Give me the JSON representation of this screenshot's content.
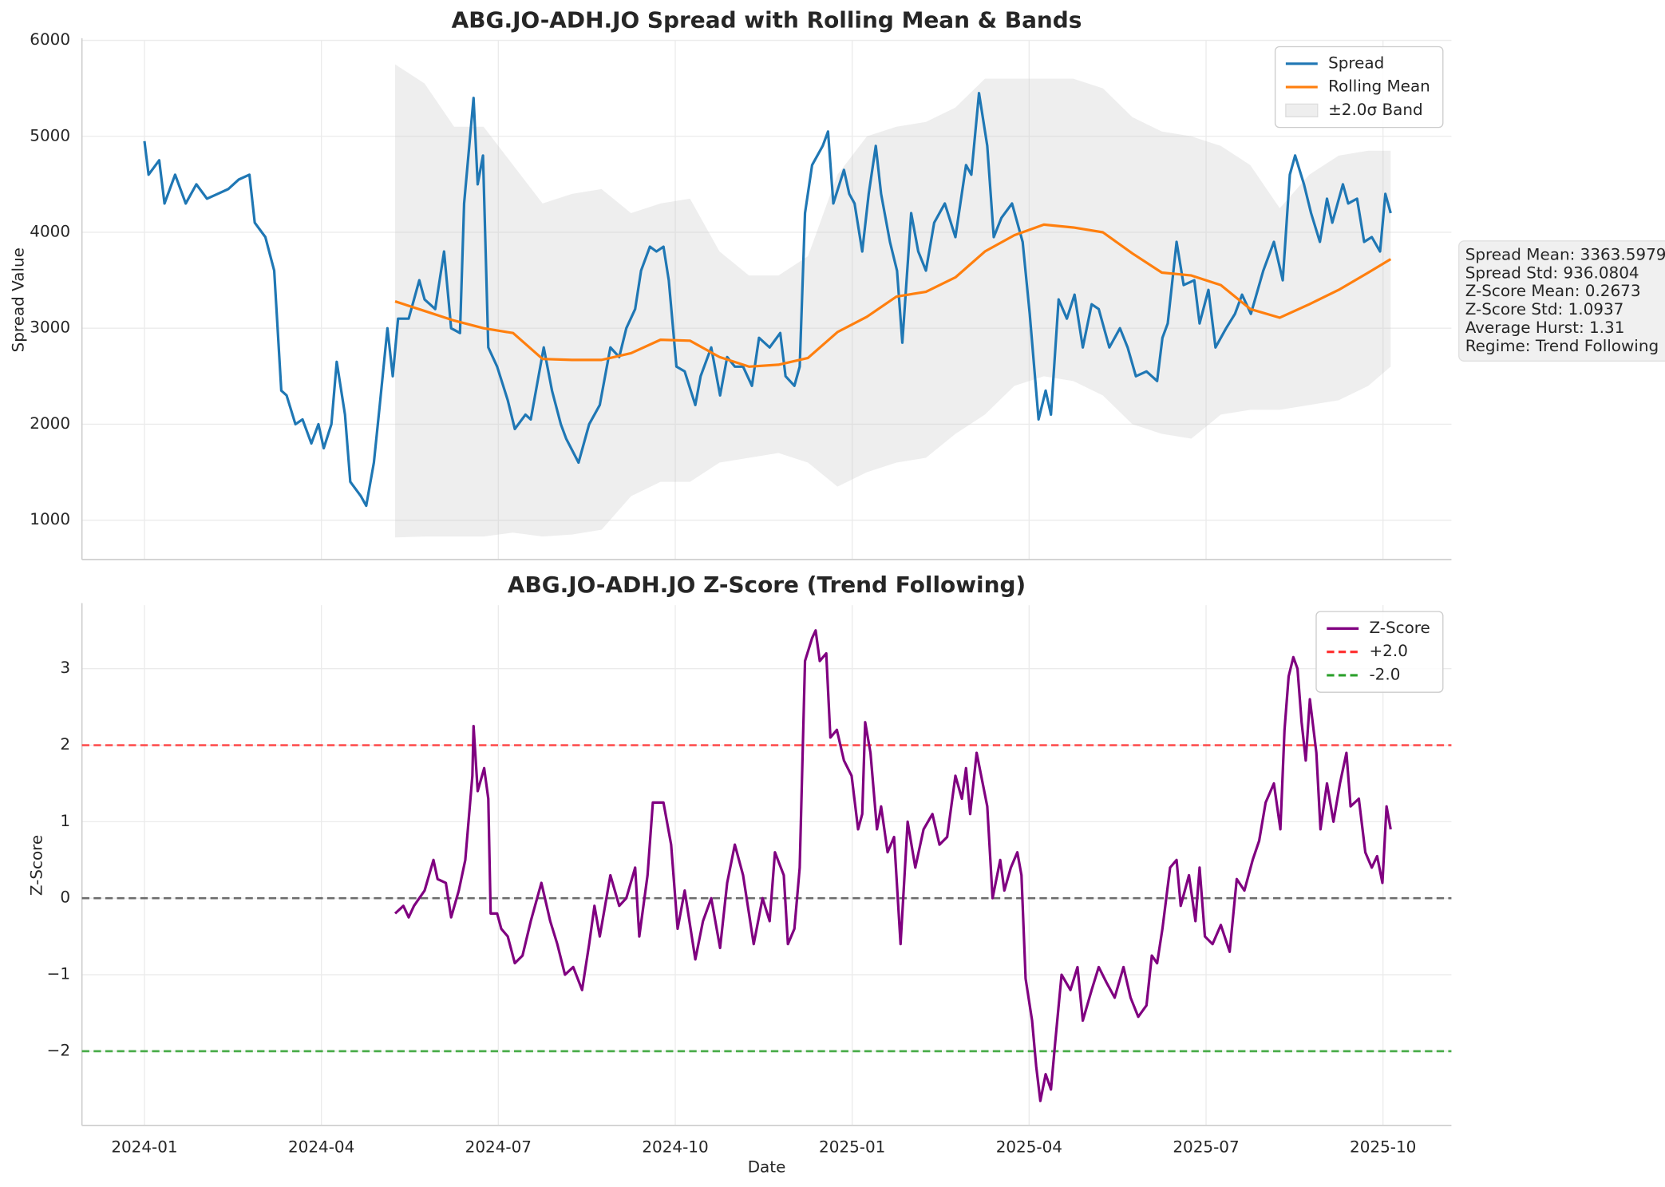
{
  "chart_data": [
    {
      "type": "line",
      "title": "ABG.JO-ADH.JO Spread with Rolling Mean & Bands",
      "ylabel": "Spread Value",
      "xlim": [
        -1.06,
        22.16
      ],
      "ylim": [
        590,
        6000
      ],
      "yticks": [
        1000,
        2000,
        3000,
        4000,
        5000,
        6000
      ],
      "grid": true,
      "legend": "upper right",
      "annotation": [
        "Spread Mean: 3363.5979",
        "Spread Std: 936.0804",
        "Z-Score Mean: 0.2673",
        "Z-Score Std: 1.0937",
        "Average Hurst: 1.31",
        "Regime: Trend Following"
      ],
      "series": [
        {
          "name": "Spread",
          "color": "#1f77b4",
          "x": [
            0,
            0.07,
            0.25,
            0.34,
            0.52,
            0.7,
            0.88,
            1.06,
            1.24,
            1.42,
            1.6,
            1.78,
            1.87,
            2.05,
            2.2,
            2.32,
            2.41,
            2.56,
            2.68,
            2.83,
            2.95,
            3.04,
            3.17,
            3.26,
            3.4,
            3.49,
            3.67,
            3.76,
            3.89,
            3.99,
            4.12,
            4.21,
            4.3,
            4.48,
            4.66,
            4.75,
            4.93,
            5.08,
            5.2,
            5.35,
            5.42,
            5.58,
            5.65,
            5.74,
            5.83,
            5.98,
            6.16,
            6.28,
            6.46,
            6.55,
            6.77,
            6.91,
            7.06,
            7.15,
            7.36,
            7.54,
            7.72,
            7.9,
            8.05,
            8.17,
            8.32,
            8.42,
            8.57,
            8.68,
            8.8,
            8.89,
            9.02,
            9.16,
            9.34,
            9.43,
            9.61,
            9.76,
            9.88,
            10.01,
            10.15,
            10.3,
            10.42,
            10.6,
            10.78,
            10.87,
            11.02,
            11.11,
            11.2,
            11.32,
            11.5,
            11.59,
            11.68,
            11.86,
            11.95,
            12.04,
            12.17,
            12.28,
            12.4,
            12.49,
            12.64,
            12.76,
            12.85,
            13.0,
            13.12,
            13.25,
            13.39,
            13.57,
            13.75,
            13.93,
            14.02,
            14.15,
            14.29,
            14.4,
            14.53,
            14.71,
            14.89,
            15.01,
            15.16,
            15.28,
            15.37,
            15.5,
            15.64,
            15.77,
            15.91,
            16.06,
            16.18,
            16.36,
            16.54,
            16.67,
            16.81,
            16.99,
            17.17,
            17.26,
            17.35,
            17.5,
            17.62,
            17.8,
            17.89,
            18.04,
            18.16,
            18.34,
            18.49,
            18.61,
            18.76,
            18.97,
            19.15,
            19.3,
            19.42,
            19.51,
            19.66,
            19.78,
            19.93,
            20.05,
            20.14,
            20.32,
            20.41,
            20.56,
            20.68,
            20.81,
            20.95,
            21.04,
            21.13
          ],
          "values": [
            4950,
            4600,
            4750,
            4300,
            4600,
            4300,
            4500,
            4350,
            4400,
            4450,
            4550,
            4600,
            4100,
            3950,
            3600,
            2350,
            2300,
            2000,
            2050,
            1800,
            2000,
            1750,
            2000,
            2650,
            2100,
            1400,
            1250,
            1150,
            1600,
            2200,
            3000,
            2500,
            3100,
            3100,
            3500,
            3300,
            3200,
            3800,
            3000,
            2950,
            4300,
            5400,
            4500,
            4800,
            2800,
            2600,
            2250,
            1950,
            2100,
            2050,
            2800,
            2350,
            2000,
            1850,
            1600,
            2000,
            2200,
            2800,
            2700,
            3000,
            3200,
            3600,
            3850,
            3800,
            3850,
            3500,
            2600,
            2550,
            2200,
            2500,
            2800,
            2300,
            2700,
            2600,
            2600,
            2400,
            2900,
            2800,
            2950,
            2500,
            2400,
            2600,
            4200,
            4700,
            4900,
            5050,
            4300,
            4650,
            4400,
            4300,
            3800,
            4400,
            4900,
            4400,
            3900,
            3600,
            2850,
            4200,
            3800,
            3600,
            4100,
            4300,
            3950,
            4700,
            4600,
            5450,
            4900,
            3950,
            4150,
            4300,
            3900,
            3150,
            2050,
            2350,
            2100,
            3300,
            3100,
            3350,
            2800,
            3250,
            3200,
            2800,
            3000,
            2800,
            2500,
            2550,
            2450,
            2900,
            3050,
            3900,
            3450,
            3500,
            3050,
            3400,
            2800,
            3000,
            3150,
            3350,
            3150,
            3600,
            3900,
            3500,
            4600,
            4800,
            4500,
            4200,
            3900,
            4350,
            4100,
            4500,
            4300,
            4350,
            3900,
            3950,
            3800,
            4400,
            4200
          ]
        },
        {
          "name": "Rolling Mean",
          "color": "#ff7f0e",
          "x": [
            4.25,
            4.75,
            5.25,
            5.75,
            6.25,
            6.75,
            7.25,
            7.75,
            8.25,
            8.75,
            9.25,
            9.75,
            10.25,
            10.75,
            11.25,
            11.75,
            12.25,
            12.75,
            13.25,
            13.75,
            14.25,
            14.75,
            15.25,
            15.75,
            16.25,
            16.75,
            17.25,
            17.75,
            18.25,
            18.75,
            19.25,
            19.75,
            20.25,
            20.75,
            21.13
          ],
          "values": [
            3280,
            3180,
            3080,
            3000,
            2950,
            2680,
            2670,
            2670,
            2740,
            2880,
            2870,
            2700,
            2600,
            2620,
            2690,
            2960,
            3120,
            3330,
            3380,
            3530,
            3800,
            3970,
            4080,
            4050,
            4000,
            3780,
            3580,
            3550,
            3450,
            3200,
            3110,
            3250,
            3400,
            3580,
            3720
          ]
        },
        {
          "name": "±2.0σ Band",
          "color": "#c8c8c8",
          "x": [
            4.25,
            4.75,
            5.25,
            5.75,
            6.25,
            6.75,
            7.25,
            7.75,
            8.25,
            8.75,
            9.25,
            9.75,
            10.25,
            10.75,
            11.25,
            11.75,
            12.25,
            12.75,
            13.25,
            13.75,
            14.25,
            14.75,
            15.25,
            15.75,
            16.25,
            16.75,
            17.25,
            17.75,
            18.25,
            18.75,
            19.25,
            19.75,
            20.25,
            20.75,
            21.13
          ],
          "upper": [
            5750,
            5550,
            5100,
            5100,
            4700,
            4300,
            4400,
            4450,
            4200,
            4300,
            4350,
            3800,
            3550,
            3550,
            3750,
            4600,
            5000,
            5100,
            5150,
            5300,
            5600,
            5600,
            5600,
            5600,
            5500,
            5200,
            5050,
            5000,
            4900,
            4700,
            4250,
            4600,
            4800,
            4850,
            4850
          ],
          "lower": [
            820,
            830,
            830,
            830,
            870,
            830,
            850,
            900,
            1250,
            1400,
            1400,
            1600,
            1650,
            1700,
            1600,
            1350,
            1500,
            1600,
            1650,
            1900,
            2100,
            2400,
            2500,
            2450,
            2300,
            2000,
            1900,
            1850,
            2100,
            2150,
            2150,
            2200,
            2250,
            2400,
            2600
          ]
        }
      ]
    },
    {
      "type": "line",
      "title": "ABG.JO-ADH.JO Z-Score (Trend Following)",
      "xlabel": "Date",
      "ylabel": "Z-Score",
      "xlim": [
        -1.06,
        22.16
      ],
      "ylim": [
        -2.97,
        3.83
      ],
      "xticks": [
        {
          "value": 0,
          "label": "2024-01"
        },
        {
          "value": 3,
          "label": "2024-04"
        },
        {
          "value": 6,
          "label": "2024-07"
        },
        {
          "value": 9,
          "label": "2024-10"
        },
        {
          "value": 12,
          "label": "2025-01"
        },
        {
          "value": 15,
          "label": "2025-04"
        },
        {
          "value": 18,
          "label": "2025-07"
        },
        {
          "value": 21,
          "label": "2025-10"
        }
      ],
      "yticks": [
        {
          "value": -2,
          "label": "−2"
        },
        {
          "value": -1,
          "label": "−1"
        },
        0,
        1,
        2,
        3
      ],
      "grid": true,
      "legend": "upper right",
      "series": [
        {
          "name": "Z-Score",
          "color": "#800080",
          "x": [
            4.25,
            4.39,
            4.48,
            4.57,
            4.75,
            4.9,
            4.97,
            5.11,
            5.2,
            5.33,
            5.44,
            5.56,
            5.58,
            5.65,
            5.76,
            5.83,
            5.87,
            5.98,
            6.05,
            6.16,
            6.28,
            6.41,
            6.55,
            6.73,
            6.88,
            7.0,
            7.13,
            7.27,
            7.42,
            7.54,
            7.63,
            7.72,
            7.9,
            8.05,
            8.17,
            8.32,
            8.39,
            8.53,
            8.62,
            8.8,
            8.93,
            9.04,
            9.16,
            9.34,
            9.47,
            9.61,
            9.76,
            9.88,
            10.01,
            10.15,
            10.33,
            10.48,
            10.6,
            10.69,
            10.84,
            10.91,
            11.02,
            11.11,
            11.2,
            11.32,
            11.38,
            11.45,
            11.56,
            11.63,
            11.74,
            11.86,
            11.99,
            12.1,
            12.17,
            12.22,
            12.31,
            12.42,
            12.49,
            12.6,
            12.71,
            12.82,
            12.94,
            13.07,
            13.21,
            13.36,
            13.48,
            13.61,
            13.75,
            13.86,
            13.93,
            14.0,
            14.11,
            14.29,
            14.38,
            14.51,
            14.58,
            14.69,
            14.8,
            14.87,
            14.94,
            15.05,
            15.12,
            15.19,
            15.28,
            15.37,
            15.44,
            15.55,
            15.7,
            15.82,
            15.91,
            16.06,
            16.18,
            16.31,
            16.45,
            16.6,
            16.72,
            16.85,
            16.99,
            17.08,
            17.17,
            17.26,
            17.39,
            17.5,
            17.57,
            17.71,
            17.82,
            17.89,
            17.98,
            18.11,
            18.25,
            18.4,
            18.52,
            18.65,
            18.79,
            18.9,
            19.01,
            19.15,
            19.26,
            19.33,
            19.4,
            19.48,
            19.55,
            19.62,
            19.69,
            19.76,
            19.87,
            19.94,
            20.05,
            20.16,
            20.27,
            20.38,
            20.45,
            20.59,
            20.7,
            20.81,
            20.9,
            20.99,
            21.06,
            21.13
          ],
          "values": [
            -0.2,
            -0.1,
            -0.25,
            -0.1,
            0.1,
            0.5,
            0.25,
            0.2,
            -0.25,
            0.1,
            0.5,
            1.6,
            2.25,
            1.4,
            1.7,
            1.3,
            -0.2,
            -0.2,
            -0.4,
            -0.5,
            -0.85,
            -0.75,
            -0.3,
            0.2,
            -0.3,
            -0.6,
            -1.0,
            -0.9,
            -1.2,
            -0.6,
            -0.1,
            -0.5,
            0.3,
            -0.1,
            0.0,
            0.4,
            -0.5,
            0.3,
            1.25,
            1.25,
            0.7,
            -0.4,
            0.1,
            -0.8,
            -0.3,
            0.0,
            -0.65,
            0.2,
            0.7,
            0.3,
            -0.6,
            0.0,
            -0.3,
            0.6,
            0.3,
            -0.6,
            -0.4,
            0.4,
            3.1,
            3.4,
            3.5,
            3.1,
            3.2,
            2.1,
            2.2,
            1.8,
            1.6,
            0.9,
            1.1,
            2.3,
            1.9,
            0.9,
            1.2,
            0.6,
            0.8,
            -0.6,
            1.0,
            0.4,
            0.9,
            1.1,
            0.7,
            0.8,
            1.6,
            1.3,
            1.7,
            1.1,
            1.9,
            1.2,
            0.0,
            0.5,
            0.1,
            0.4,
            0.6,
            0.3,
            -1.05,
            -1.6,
            -2.2,
            -2.65,
            -2.3,
            -2.5,
            -1.9,
            -1.0,
            -1.2,
            -0.9,
            -1.6,
            -1.2,
            -0.9,
            -1.1,
            -1.3,
            -0.9,
            -1.3,
            -1.55,
            -1.4,
            -0.75,
            -0.85,
            -0.4,
            0.4,
            0.5,
            -0.1,
            0.3,
            -0.3,
            0.4,
            -0.5,
            -0.6,
            -0.35,
            -0.7,
            0.25,
            0.1,
            0.5,
            0.75,
            1.25,
            1.5,
            0.9,
            2.2,
            2.9,
            3.15,
            3.0,
            2.3,
            1.8,
            2.6,
            1.9,
            0.9,
            1.5,
            1.0,
            1.5,
            1.9,
            1.2,
            1.3,
            0.6,
            0.4,
            0.55,
            0.2,
            1.2,
            0.9
          ]
        }
      ],
      "hlines": [
        {
          "value": 2,
          "name": "+2.0",
          "color": "#ff3333",
          "linestyle": "dashed"
        },
        {
          "value": -2,
          "name": "-2.0",
          "color": "#2ca02c",
          "linestyle": "dashed"
        },
        {
          "value": 0,
          "color": "#555555",
          "linestyle": "dashed"
        }
      ]
    }
  ]
}
